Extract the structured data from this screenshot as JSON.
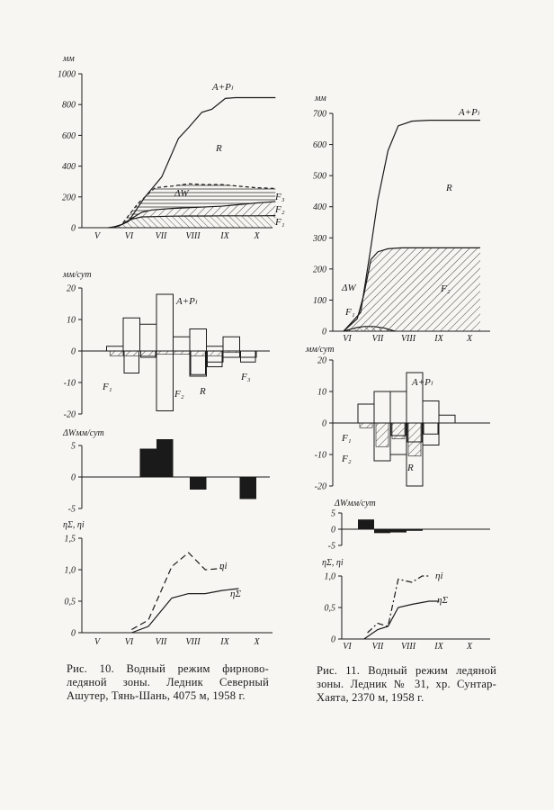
{
  "captions": {
    "left": "Рис. 10. Водный режим фирново-ледяной зоны. Ледник Северный Ашутер, Тянь-Шань, 4075 м, 1958 г.",
    "right": "Рис. 11. Водный режим ледяной зоны. Ледник № 31, хр. Сунтар-Хаята, 2370 м, 1958 г."
  },
  "colors": {
    "ink": "#1a1a1a",
    "paper": "#f7f6f2"
  },
  "chart_data": [
    {
      "id": "fig10-cumulative",
      "type": "area",
      "ylabel": "мм",
      "ylim": [
        0,
        1000
      ],
      "yticks": [
        0,
        200,
        400,
        600,
        800,
        1000
      ],
      "xticks": [
        "V",
        "VI",
        "VII",
        "VIII",
        "IX",
        "X"
      ],
      "labels": [
        "A+Pₗ",
        "R",
        "ΔW",
        "F₃",
        "F₂",
        "F₁"
      ],
      "series": [
        {
          "name": "A+Pₗ",
          "x": [
            0.6,
            0.9,
            1.2,
            1.7,
            2.2,
            2.4,
            2.7,
            3.0,
            3.4,
            3.7,
            4.1,
            4.4,
            4.8,
            5.6
          ],
          "values": [
            0,
            10,
            40,
            200,
            330,
            430,
            580,
            650,
            750,
            770,
            840,
            845,
            845,
            845
          ]
        },
        {
          "name": "F₃",
          "x": [
            0.7,
            1.0,
            1.5,
            2.0,
            2.5,
            3.0,
            3.5,
            4.0,
            4.5,
            5.0,
            5.6
          ],
          "values": [
            0,
            20,
            160,
            260,
            270,
            285,
            280,
            280,
            270,
            260,
            255
          ]
        },
        {
          "name": "F₂",
          "x": [
            0.7,
            1.0,
            1.3,
            1.6,
            1.9,
            2.5,
            3.0,
            3.5,
            4.0,
            4.5,
            5.0,
            5.6
          ],
          "values": [
            0,
            20,
            60,
            100,
            115,
            125,
            130,
            135,
            140,
            150,
            160,
            170
          ]
        },
        {
          "name": "F₁",
          "x": [
            0.7,
            1.0,
            1.3,
            1.6,
            2.0,
            2.5,
            3.0,
            3.5,
            4.0,
            4.5,
            5.0,
            5.6
          ],
          "values": [
            0,
            20,
            55,
            70,
            72,
            75,
            76,
            76,
            77,
            77,
            77,
            78
          ]
        }
      ]
    },
    {
      "id": "fig10-rates",
      "type": "bar",
      "ylabel": "мм/сут",
      "ylim": [
        -20,
        20
      ],
      "yticks": [
        -20,
        -10,
        0,
        10,
        20
      ],
      "labels": [
        "A+Pₗ",
        "F₁",
        "F₂",
        "R",
        "F₃"
      ],
      "bars": {
        "A+Pₗ": [
          [
            0.5,
            1,
            0,
            1.5
          ],
          [
            1,
            1.5,
            0,
            10.5
          ],
          [
            1.5,
            2,
            0,
            8.5
          ],
          [
            2,
            2.5,
            -19,
            18
          ],
          [
            2.5,
            3,
            0,
            4.5
          ],
          [
            3,
            3.5,
            -8,
            7
          ],
          [
            3.5,
            4,
            -3.5,
            1.5
          ],
          [
            4,
            4.5,
            -2,
            4.5
          ],
          [
            4.5,
            5,
            -2,
            0
          ]
        ],
        "R": [
          [
            1,
            1.5,
            -7,
            0
          ],
          [
            1.5,
            2,
            -2,
            0
          ],
          [
            3,
            3.5,
            -7.5,
            0
          ],
          [
            3.5,
            4,
            -5,
            0
          ],
          [
            4.5,
            5,
            -3.5,
            0
          ]
        ],
        "F": [
          [
            0.6,
            1.0,
            -1.5,
            0
          ],
          [
            1.0,
            2.0,
            -1.5,
            0
          ],
          [
            2.0,
            2.5,
            -1,
            0
          ],
          [
            2.5,
            3.0,
            -1,
            0
          ],
          [
            3.0,
            4.0,
            -1.5,
            0
          ],
          [
            4.0,
            4.5,
            -0.5,
            0
          ]
        ]
      }
    },
    {
      "id": "fig10-dw",
      "type": "bar",
      "ylabel": "ΔWмм/сут",
      "ylim": [
        -5,
        5
      ],
      "yticks": [
        -5,
        0,
        5
      ],
      "bars": [
        [
          1.5,
          2.0,
          4.5
        ],
        [
          2.0,
          2.5,
          6.0
        ],
        [
          2.5,
          3.0,
          0
        ],
        [
          3.0,
          3.5,
          -2
        ],
        [
          3.5,
          4.0,
          0
        ],
        [
          4.0,
          4.5,
          0
        ],
        [
          4.5,
          5.0,
          -3.5
        ]
      ]
    },
    {
      "id": "fig10-eta",
      "type": "line",
      "ylabel": "ηΣ, ηi",
      "ylim": [
        0,
        1.5
      ],
      "yticks": [
        "0",
        "0,5",
        "1,0",
        "1,5"
      ],
      "xticks": [
        "V",
        "VI",
        "VII",
        "VIII",
        "IX",
        "X"
      ],
      "series": [
        {
          "name": "ηi",
          "x": [
            1.3,
            1.8,
            2.5,
            3.0,
            3.5,
            4.0
          ],
          "values": [
            0.05,
            0.2,
            1.05,
            1.27,
            1.0,
            1.02
          ]
        },
        {
          "name": "ηΣ",
          "x": [
            1.3,
            1.8,
            2.5,
            3.0,
            3.5,
            4.0,
            4.5
          ],
          "values": [
            0,
            0.1,
            0.55,
            0.62,
            0.62,
            0.67,
            0.7
          ]
        }
      ]
    },
    {
      "id": "fig11-cumulative",
      "type": "area",
      "ylabel": "мм",
      "ylim": [
        0,
        700
      ],
      "yticks": [
        0,
        100,
        200,
        300,
        400,
        500,
        600,
        700
      ],
      "xticks": [
        "VI",
        "VII",
        "VIII",
        "IX",
        "X"
      ],
      "labels": [
        "A+Pₗ",
        "R",
        "ΔW",
        "F₁",
        "F₂"
      ],
      "series": [
        {
          "name": "A+Pₗ",
          "x": [
            0,
            0.5,
            0.8,
            1.0,
            1.3,
            1.6,
            2.0,
            2.5,
            3.0,
            3.5,
            4.0
          ],
          "values": [
            0,
            60,
            270,
            420,
            580,
            660,
            675,
            678,
            678,
            678,
            678
          ]
        },
        {
          "name": "F₂",
          "x": [
            0,
            0.4,
            0.6,
            0.8,
            1.0,
            1.3,
            1.7,
            2.2,
            2.8,
            3.5,
            4.0
          ],
          "values": [
            0,
            40,
            120,
            230,
            255,
            265,
            268,
            268,
            268,
            268,
            268
          ]
        },
        {
          "name": "F₁",
          "x": [
            0,
            0.4,
            0.6,
            0.9,
            1.2,
            1.5
          ],
          "values": [
            0,
            12,
            15,
            15,
            10,
            0
          ]
        }
      ]
    },
    {
      "id": "fig11-rates",
      "type": "bar",
      "ylabel": "мм/сут",
      "ylim": [
        -20,
        20
      ],
      "yticks": [
        -20,
        -10,
        0,
        10,
        20
      ],
      "labels": [
        "A+Pₗ",
        "F₁",
        "F₂",
        "R"
      ],
      "bars": {
        "A+Pₗ": [
          [
            0.5,
            1.0,
            0,
            6
          ],
          [
            1.0,
            1.5,
            -12,
            10
          ],
          [
            1.5,
            2.0,
            -10,
            10
          ],
          [
            2.0,
            2.5,
            -20,
            16
          ],
          [
            2.5,
            3.0,
            -7,
            7
          ],
          [
            3.0,
            3.5,
            0,
            2.5
          ]
        ],
        "F": [
          [
            0.5,
            1.0,
            -1.5,
            0
          ],
          [
            1.0,
            1.5,
            -7.5,
            0
          ],
          [
            1.5,
            2.0,
            -5,
            0
          ],
          [
            2.0,
            2.5,
            -10.5,
            0
          ]
        ],
        "R": [
          [
            1.5,
            2.0,
            -4,
            0
          ],
          [
            2.0,
            2.5,
            -6,
            0
          ],
          [
            2.5,
            3.0,
            -3.5,
            0
          ]
        ]
      }
    },
    {
      "id": "fig11-dw",
      "type": "bar",
      "ylabel": "ΔWмм/сут",
      "ylim": [
        -5,
        5
      ],
      "yticks": [
        -5,
        0,
        5
      ],
      "bars": [
        [
          0.5,
          1.0,
          3
        ],
        [
          1.0,
          1.5,
          -1.2
        ],
        [
          1.5,
          2.0,
          -1.0
        ],
        [
          2.0,
          2.5,
          -0.5
        ]
      ]
    },
    {
      "id": "fig11-eta",
      "type": "line",
      "ylabel": "ηΣ, ηi",
      "ylim": [
        0,
        1.0
      ],
      "yticks": [
        "0",
        "0,5",
        "1,0"
      ],
      "xticks": [
        "VI",
        "VII",
        "VIII",
        "IX",
        "X"
      ],
      "series": [
        {
          "name": "ηi",
          "x": [
            0.7,
            1.0,
            1.3,
            1.6,
            2.0,
            2.3,
            2.5
          ],
          "values": [
            0.1,
            0.25,
            0.2,
            0.95,
            0.9,
            1.0,
            1.0
          ]
        },
        {
          "name": "ηΣ",
          "x": [
            0.6,
            1.0,
            1.3,
            1.6,
            2.0,
            2.5,
            2.8
          ],
          "values": [
            0,
            0.15,
            0.2,
            0.5,
            0.55,
            0.6,
            0.6
          ]
        }
      ]
    }
  ]
}
